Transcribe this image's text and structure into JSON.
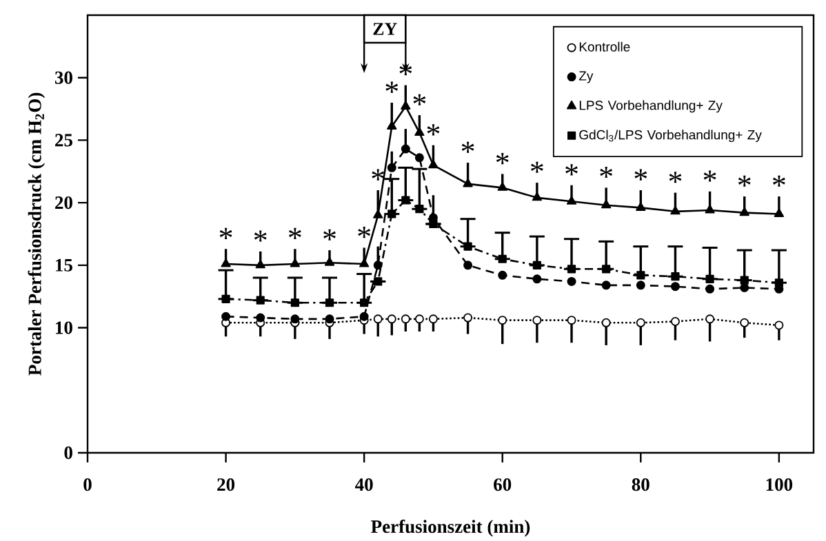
{
  "chart_data": {
    "type": "line",
    "xlabel": "Perfusionszeit (min)",
    "ylabel": "Portaler Perfusionsdruck (cm H$_{2}$O)",
    "xlim": [
      0,
      105
    ],
    "ylim": [
      0,
      35
    ],
    "xticks": [
      0,
      20,
      40,
      60,
      80,
      100
    ],
    "yticks": [
      0,
      10,
      15,
      20,
      25,
      30
    ],
    "legend": "top right",
    "x": [
      20,
      25,
      30,
      35,
      40,
      42,
      44,
      46,
      48,
      50,
      55,
      60,
      65,
      70,
      75,
      80,
      85,
      90,
      95,
      100
    ],
    "series": [
      {
        "name": "Kontrolle",
        "color": "#000000",
        "marker": "circle-open",
        "line_style": "dotted",
        "values": [
          10.4,
          10.4,
          10.4,
          10.4,
          10.6,
          10.7,
          10.7,
          10.7,
          10.7,
          10.7,
          10.8,
          10.6,
          10.6,
          10.6,
          10.4,
          10.4,
          10.5,
          10.7,
          10.4,
          10.2
        ],
        "errors": [
          [
            9.3,
            10.4
          ],
          [
            9.3,
            10.4
          ],
          [
            9.1,
            10.4
          ],
          [
            9.1,
            10.4
          ],
          [
            9.5,
            10.6
          ],
          [
            9.3,
            10.7
          ],
          [
            9.4,
            10.7
          ],
          [
            9.7,
            10.7
          ],
          [
            9.7,
            10.7
          ],
          [
            9.7,
            10.7
          ],
          [
            9.5,
            10.8
          ],
          [
            8.7,
            10.6
          ],
          [
            8.8,
            10.6
          ],
          [
            8.8,
            10.6
          ],
          [
            8.6,
            10.4
          ],
          [
            8.6,
            10.4
          ],
          [
            9.0,
            10.5
          ],
          [
            8.9,
            10.7
          ],
          [
            9.2,
            10.4
          ],
          [
            9.0,
            10.2
          ]
        ]
      },
      {
        "name": "Zy",
        "color": "#000000",
        "marker": "circle",
        "line_style": "dashed",
        "values": [
          10.9,
          10.8,
          10.7,
          10.7,
          10.9,
          15.0,
          22.8,
          24.3,
          23.6,
          18.8,
          15.0,
          14.2,
          13.9,
          13.7,
          13.4,
          13.4,
          13.3,
          13.1,
          13.2,
          13.1
        ],
        "errors": [
          null,
          null,
          null,
          null,
          null,
          [
            15.0,
            16.5
          ],
          [
            22.8,
            24.1
          ],
          [
            24.3,
            25.9
          ],
          null,
          [
            18.8,
            20.6
          ],
          null,
          null,
          null,
          null,
          null,
          null,
          null,
          null,
          null,
          null
        ]
      },
      {
        "name": "LPS Vorbehandlung+ Zy",
        "color": "#000000",
        "marker": "triangle",
        "line_style": "solid",
        "values": [
          15.1,
          15.0,
          15.1,
          15.2,
          15.1,
          19.0,
          26.1,
          27.7,
          25.6,
          23.0,
          21.5,
          21.2,
          20.4,
          20.1,
          19.8,
          19.6,
          19.3,
          19.4,
          19.2,
          19.1
        ],
        "errors": [
          [
            15.1,
            16.3
          ],
          [
            15.0,
            16.1
          ],
          [
            15.1,
            16.3
          ],
          [
            15.2,
            16.2
          ],
          [
            15.1,
            16.4
          ],
          [
            19.0,
            21.0
          ],
          [
            26.1,
            28.0
          ],
          [
            27.7,
            29.4
          ],
          [
            25.6,
            27.0
          ],
          [
            23.0,
            24.6
          ],
          [
            21.5,
            23.2
          ],
          [
            21.2,
            22.3
          ],
          [
            20.4,
            21.6
          ],
          [
            20.1,
            21.4
          ],
          [
            19.8,
            21.2
          ],
          [
            19.6,
            21.0
          ],
          [
            19.3,
            20.8
          ],
          [
            19.4,
            20.9
          ],
          [
            19.2,
            20.5
          ],
          [
            19.1,
            20.5
          ]
        ]
      },
      {
        "name": "GdCl$_{3}$/LPS Vorbehandlung+ Zy",
        "color": "#000000",
        "marker": "square",
        "line_style": "dashdotted",
        "values": [
          12.3,
          12.2,
          12.0,
          12.0,
          12.0,
          13.7,
          19.1,
          20.2,
          19.5,
          18.3,
          16.5,
          15.5,
          15.0,
          14.7,
          14.7,
          14.2,
          14.1,
          13.9,
          13.8,
          13.6
        ],
        "errors": [
          [
            12.3,
            14.6
          ],
          [
            12.2,
            14.0
          ],
          [
            12.0,
            14.0
          ],
          [
            12.0,
            14.0
          ],
          [
            12.0,
            14.3
          ],
          null,
          [
            19.1,
            21.9
          ],
          [
            20.2,
            22.8
          ],
          [
            19.5,
            22.7
          ],
          null,
          [
            16.5,
            18.7
          ],
          [
            15.5,
            17.6
          ],
          [
            15.0,
            17.3
          ],
          [
            14.7,
            17.1
          ],
          [
            14.7,
            16.9
          ],
          [
            14.2,
            16.5
          ],
          [
            14.1,
            16.5
          ],
          [
            13.9,
            16.4
          ],
          [
            13.8,
            16.2
          ],
          [
            13.6,
            16.2
          ]
        ]
      }
    ],
    "bands": [
      {
        "axis": "x",
        "from": 40,
        "to": 46,
        "label": "ZY"
      }
    ],
    "annotations": [
      {
        "text": "*",
        "x": 20,
        "y": 15.1
      },
      {
        "text": "*",
        "x": 25,
        "y": 15.0
      },
      {
        "text": "*",
        "x": 30,
        "y": 15.1
      },
      {
        "text": "*",
        "x": 35,
        "y": 15.2
      },
      {
        "text": "*",
        "x": 40,
        "y": 15.1
      },
      {
        "text": "*",
        "x": 42,
        "y": 19.0
      },
      {
        "text": "*",
        "x": 44,
        "y": 26.1
      },
      {
        "text": "*",
        "x": 46,
        "y": 27.7
      },
      {
        "text": "*",
        "x": 48,
        "y": 25.6
      },
      {
        "text": "*",
        "x": 50,
        "y": 23.0
      },
      {
        "text": "*",
        "x": 55,
        "y": 21.5
      },
      {
        "text": "*",
        "x": 60,
        "y": 21.2
      },
      {
        "text": "*",
        "x": 65,
        "y": 20.4
      },
      {
        "text": "*",
        "x": 70,
        "y": 20.1
      },
      {
        "text": "*",
        "x": 75,
        "y": 19.8
      },
      {
        "text": "*",
        "x": 80,
        "y": 19.6
      },
      {
        "text": "*",
        "x": 85,
        "y": 19.3
      },
      {
        "text": "*",
        "x": 90,
        "y": 19.4
      },
      {
        "text": "*",
        "x": 95,
        "y": 19.2
      },
      {
        "text": "*",
        "x": 100,
        "y": 19.1
      }
    ]
  }
}
